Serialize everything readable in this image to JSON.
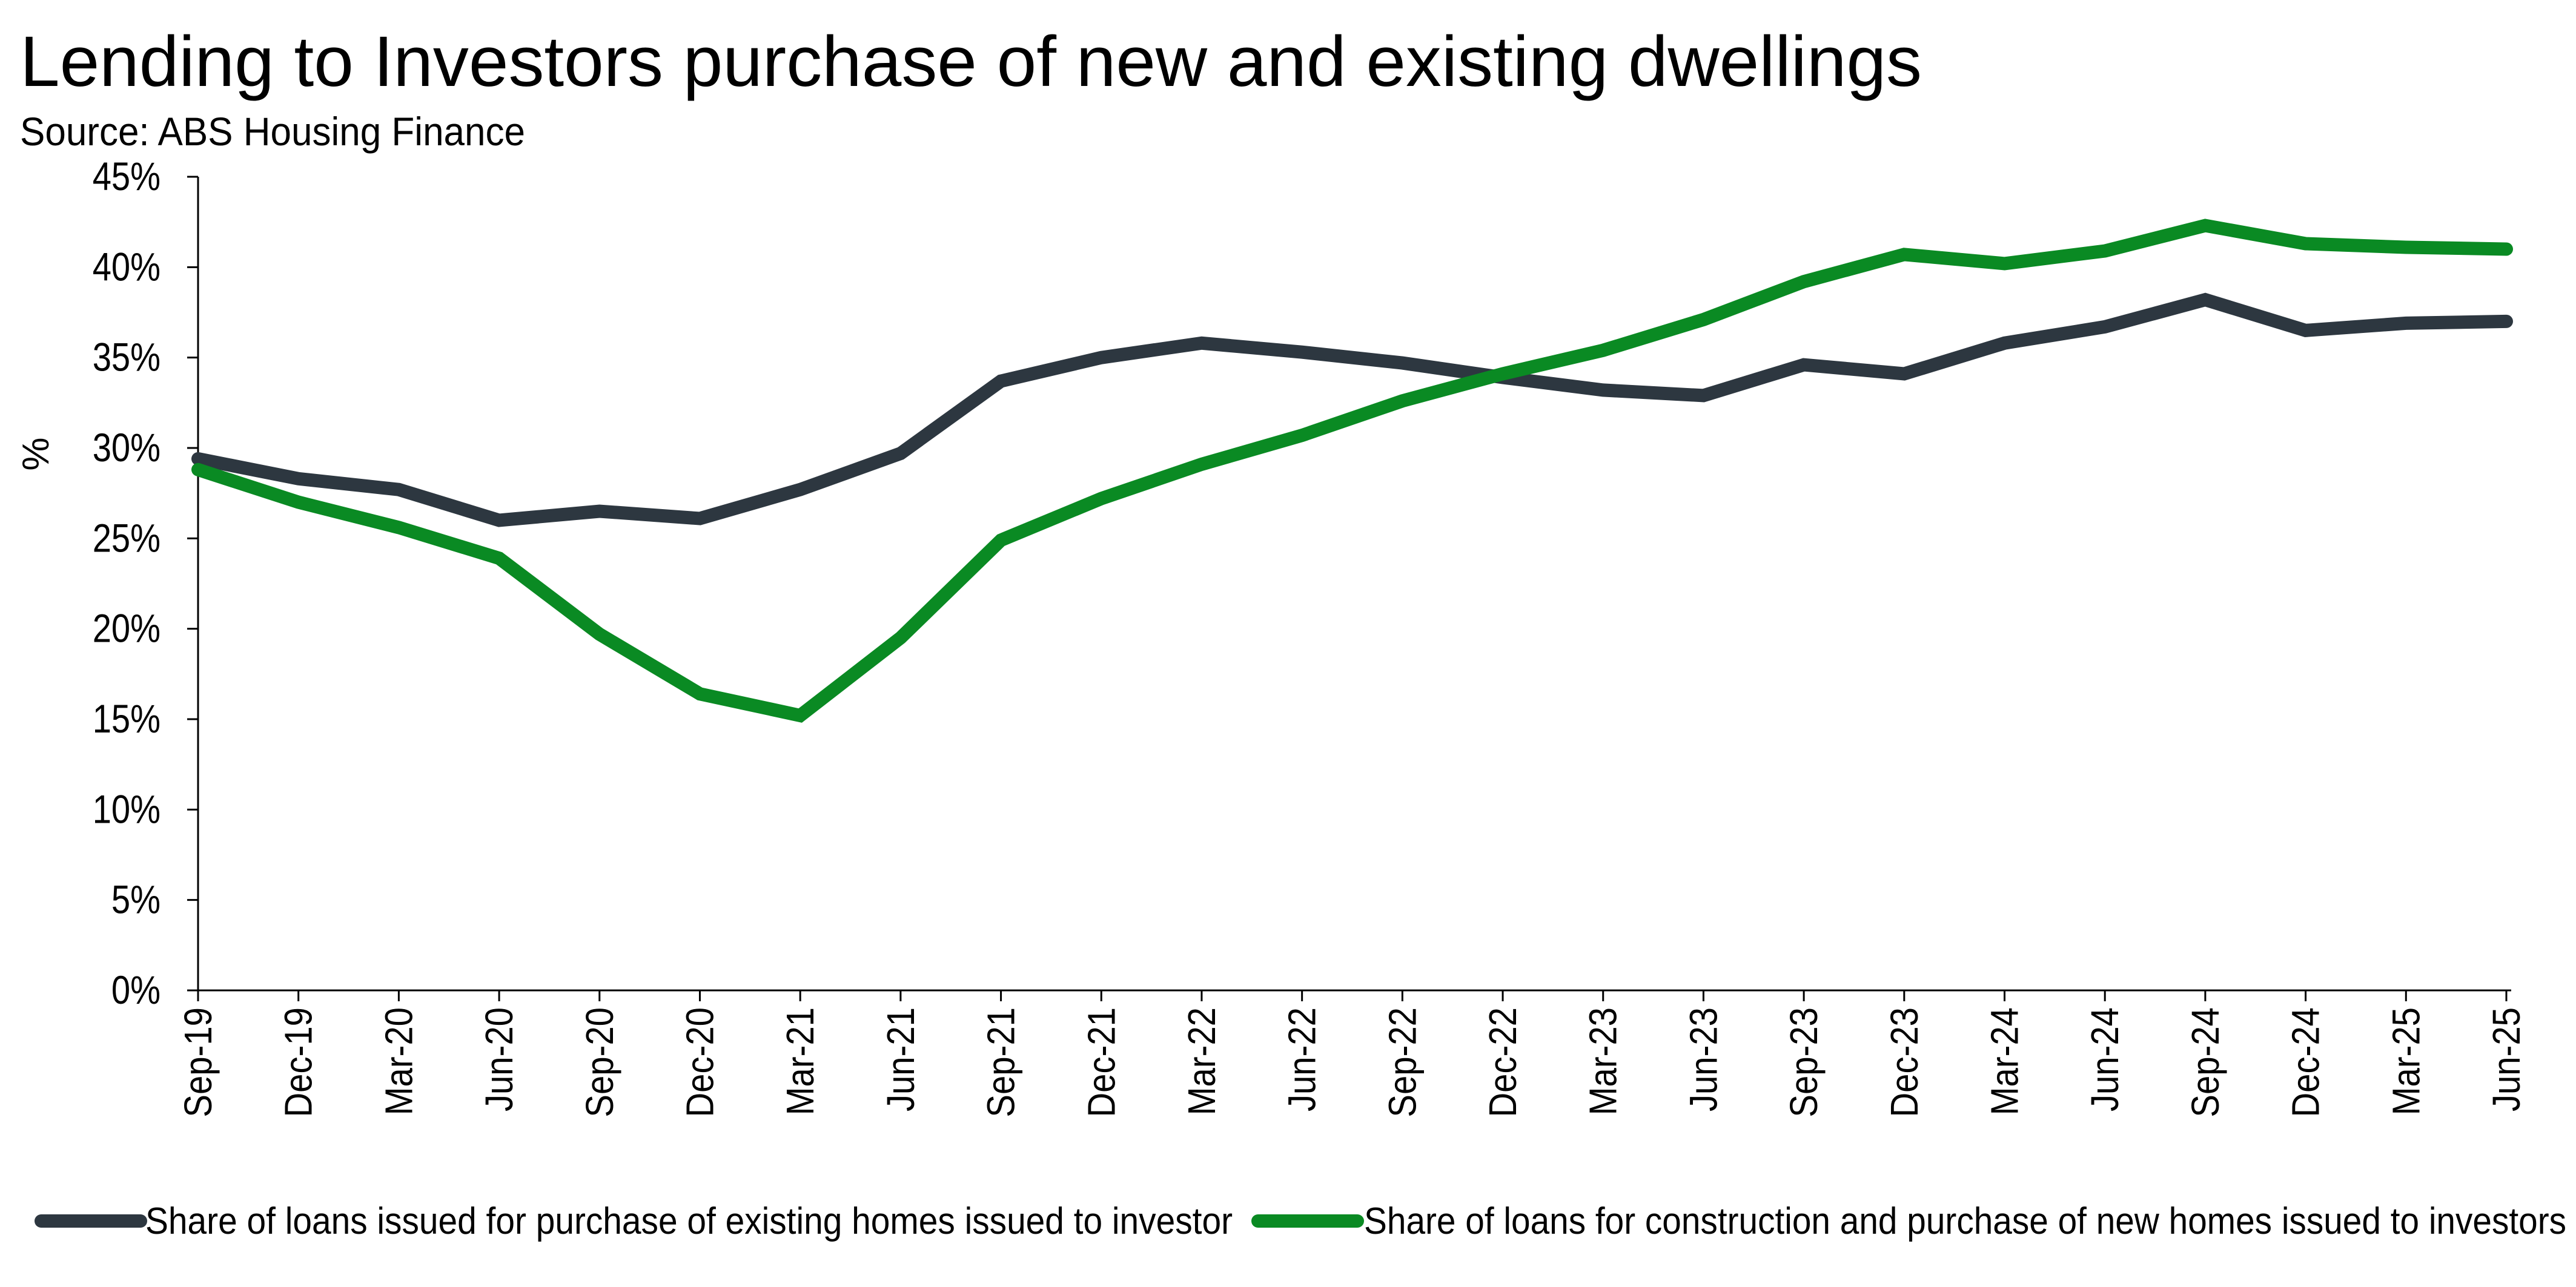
{
  "chart_data": {
    "type": "line",
    "title": "Lending to Investors purchase of new and existing dwellings",
    "subtitle": "Source: ABS Housing Finance",
    "ylabel": "%",
    "xlabel": "",
    "ylim": [
      0,
      45
    ],
    "yticks": [
      "0%",
      "5%",
      "10%",
      "15%",
      "20%",
      "25%",
      "30%",
      "35%",
      "40%",
      "45%"
    ],
    "grid": false,
    "legend_position": "bottom",
    "categories": [
      "Sep-19",
      "Dec-19",
      "Mar-20",
      "Jun-20",
      "Sep-20",
      "Dec-20",
      "Mar-21",
      "Jun-21",
      "Sep-21",
      "Dec-21",
      "Mar-22",
      "Jun-22",
      "Sep-22",
      "Dec-22",
      "Mar-23",
      "Jun-23",
      "Sep-23",
      "Dec-23",
      "Mar-24",
      "Jun-24",
      "Sep-24",
      "Dec-24",
      "Mar-25",
      "Jun-25"
    ],
    "series": [
      {
        "name": "Share of loans issued for purchase of existing homes issued to investor",
        "color": "#2d3740",
        "values": [
          29.4,
          28.3,
          27.7,
          26.0,
          26.5,
          26.1,
          27.7,
          29.7,
          33.7,
          35.0,
          35.8,
          35.3,
          34.7,
          33.9,
          33.2,
          32.9,
          34.6,
          34.1,
          35.8,
          36.7,
          38.2,
          36.5,
          36.9,
          37.0
        ]
      },
      {
        "name": "Share of loans for construction and purchase of new homes issued to investors",
        "color": "#0a8a23",
        "values": [
          28.8,
          27.0,
          25.6,
          23.9,
          19.7,
          16.4,
          15.2,
          19.5,
          24.9,
          27.2,
          29.1,
          30.7,
          32.6,
          34.1,
          35.4,
          37.1,
          39.2,
          40.7,
          40.2,
          40.9,
          42.3,
          41.3,
          41.1,
          41.0
        ]
      }
    ]
  }
}
